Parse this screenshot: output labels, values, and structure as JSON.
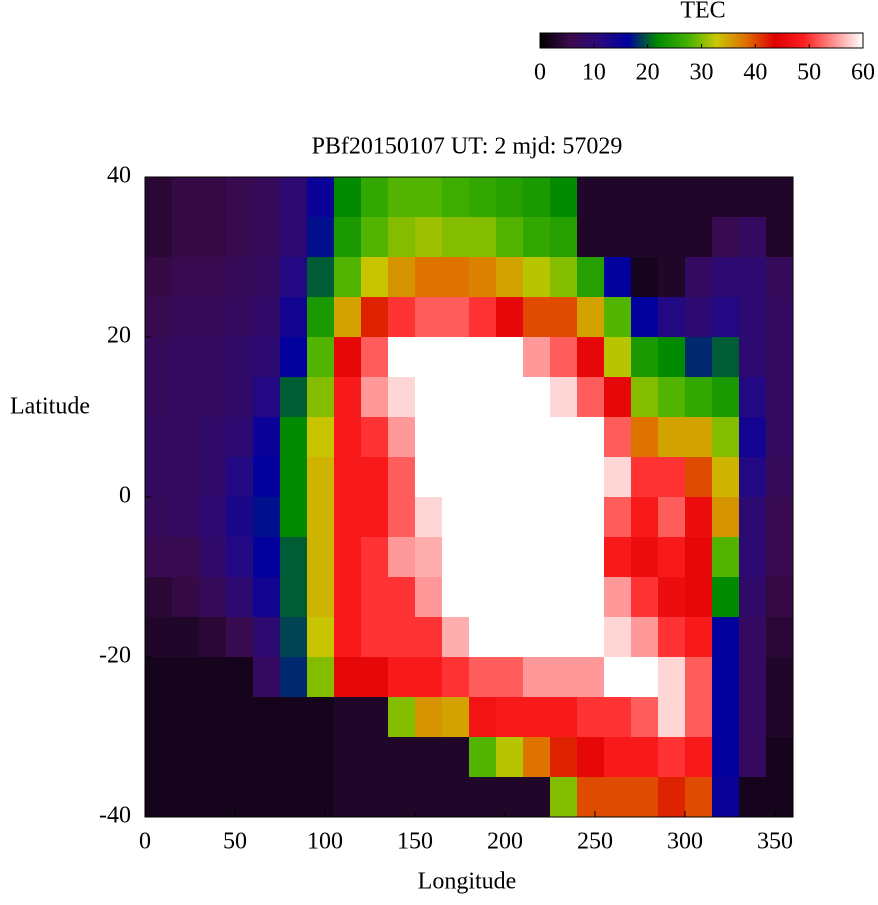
{
  "chart_data": {
    "type": "heatmap",
    "title": "PBf20150107  UT: 2  mjd: 57029",
    "x_label": "Longitude",
    "y_label": "Latitude",
    "colorbar_label": "TEC",
    "xlim": [
      0,
      360
    ],
    "xticks": [
      0,
      50,
      100,
      150,
      200,
      250,
      300,
      350
    ],
    "ylim": [
      -40,
      40
    ],
    "yticks": [
      -40,
      -20,
      0,
      20,
      40
    ],
    "clim": [
      0,
      60
    ],
    "cticks": [
      0,
      10,
      20,
      30,
      40,
      50,
      60
    ],
    "colorscale": [
      "#000000",
      "#3a0a4a",
      "#2a0a7a",
      "#0000a0",
      "#008a00",
      "#40b000",
      "#c8c800",
      "#e07000",
      "#dd0000",
      "#ff2020",
      "#ff9090",
      "#ffffff"
    ],
    "x": [
      7.5,
      22.5,
      37.5,
      52.5,
      67.5,
      82.5,
      97.5,
      112.5,
      127.5,
      142.5,
      157.5,
      172.5,
      187.5,
      202.5,
      217.5,
      232.5,
      247.5,
      262.5,
      277.5,
      292.5,
      307.5,
      322.5,
      337.5,
      352.5
    ],
    "y": [
      37.5,
      32.5,
      27.5,
      22.5,
      17.5,
      12.5,
      7.5,
      2.5,
      -2.5,
      -7.5,
      -12.5,
      -17.5,
      -22.5,
      -27.5,
      -32.5,
      -37.5
    ],
    "z": [
      [
        4,
        5,
        5,
        6,
        7,
        10,
        15,
        22,
        26,
        28,
        28,
        27,
        26,
        25,
        24,
        22,
        3,
        3,
        3,
        3,
        3,
        3,
        3,
        3
      ],
      [
        4,
        5,
        5,
        6,
        7,
        10,
        17,
        24,
        28,
        30,
        31,
        30,
        30,
        28,
        26,
        25,
        3,
        3,
        3,
        3,
        3,
        6,
        8,
        3
      ],
      [
        5,
        6,
        6,
        7,
        8,
        12,
        20,
        28,
        33,
        36,
        38,
        38,
        37,
        35,
        32,
        30,
        25,
        16,
        2,
        3,
        8,
        10,
        10,
        7
      ],
      [
        6,
        7,
        7,
        8,
        9,
        14,
        24,
        35,
        42,
        50,
        52,
        52,
        50,
        45,
        40,
        40,
        35,
        28,
        16,
        12,
        10,
        12,
        10,
        8
      ],
      [
        7,
        8,
        8,
        9,
        10,
        16,
        28,
        45,
        52,
        60,
        60,
        60,
        60,
        60,
        55,
        52,
        45,
        32,
        24,
        22,
        18,
        20,
        10,
        8
      ],
      [
        7,
        8,
        8,
        9,
        12,
        20,
        30,
        48,
        55,
        58,
        60,
        60,
        60,
        60,
        60,
        58,
        52,
        45,
        30,
        28,
        26,
        24,
        12,
        8
      ],
      [
        8,
        8,
        9,
        10,
        15,
        22,
        33,
        48,
        50,
        55,
        60,
        60,
        60,
        60,
        60,
        60,
        60,
        52,
        38,
        35,
        35,
        30,
        14,
        8
      ],
      [
        8,
        8,
        9,
        12,
        16,
        22,
        34,
        48,
        48,
        52,
        60,
        60,
        60,
        60,
        60,
        60,
        60,
        58,
        50,
        50,
        40,
        34,
        12,
        7
      ],
      [
        7,
        8,
        10,
        13,
        17,
        22,
        34,
        48,
        48,
        52,
        58,
        60,
        60,
        60,
        60,
        60,
        60,
        52,
        48,
        52,
        46,
        36,
        10,
        6
      ],
      [
        6,
        6,
        9,
        12,
        16,
        20,
        34,
        48,
        50,
        55,
        56,
        60,
        60,
        60,
        60,
        60,
        60,
        48,
        46,
        48,
        45,
        28,
        10,
        6
      ],
      [
        4,
        5,
        7,
        10,
        14,
        20,
        34,
        48,
        50,
        50,
        55,
        60,
        60,
        60,
        60,
        60,
        60,
        55,
        50,
        46,
        45,
        22,
        9,
        5
      ],
      [
        3,
        3,
        4,
        6,
        10,
        19,
        33,
        48,
        50,
        50,
        50,
        56,
        60,
        60,
        60,
        60,
        60,
        58,
        55,
        50,
        48,
        16,
        8,
        4
      ],
      [
        2,
        2,
        2,
        2,
        8,
        18,
        30,
        45,
        45,
        48,
        48,
        50,
        52,
        52,
        55,
        55,
        55,
        60,
        60,
        58,
        52,
        16,
        8,
        3
      ],
      [
        2,
        2,
        2,
        2,
        2,
        2,
        2,
        3,
        3,
        30,
        36,
        35,
        47,
        48,
        48,
        48,
        50,
        50,
        52,
        58,
        52,
        16,
        8,
        3
      ],
      [
        2,
        2,
        2,
        2,
        2,
        2,
        2,
        3,
        3,
        3,
        3,
        3,
        28,
        32,
        38,
        42,
        45,
        48,
        48,
        50,
        48,
        16,
        8,
        2
      ],
      [
        2,
        2,
        2,
        2,
        2,
        2,
        2,
        3,
        3,
        3,
        3,
        3,
        3,
        3,
        3,
        30,
        40,
        40,
        40,
        42,
        40,
        15,
        2,
        2
      ]
    ]
  }
}
